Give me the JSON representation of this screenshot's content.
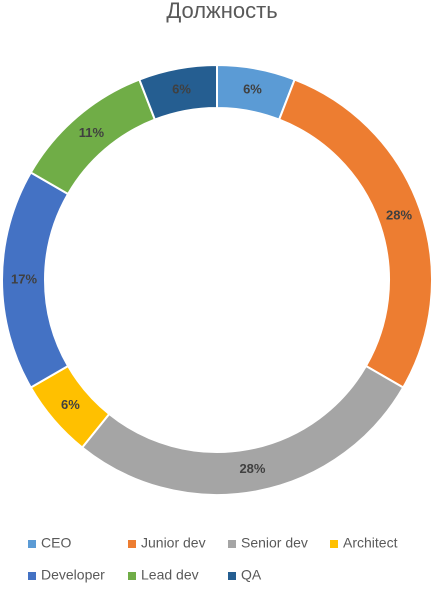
{
  "chart_data": {
    "type": "donut",
    "title": "Должность",
    "categories": [
      "CEO",
      "Junior dev",
      "Senior dev",
      "Architect",
      "Developer",
      "Lead dev",
      "QA"
    ],
    "values": [
      6,
      28,
      28,
      6,
      17,
      11,
      6
    ],
    "value_labels": [
      "6%",
      "28%",
      "28%",
      "6%",
      "17%",
      "11%",
      "6%"
    ],
    "colors": [
      "#5b9bd5",
      "#ed7d31",
      "#a5a5a5",
      "#ffc000",
      "#4472c4",
      "#70ad47",
      "#255e91"
    ],
    "legend": "bottom"
  }
}
